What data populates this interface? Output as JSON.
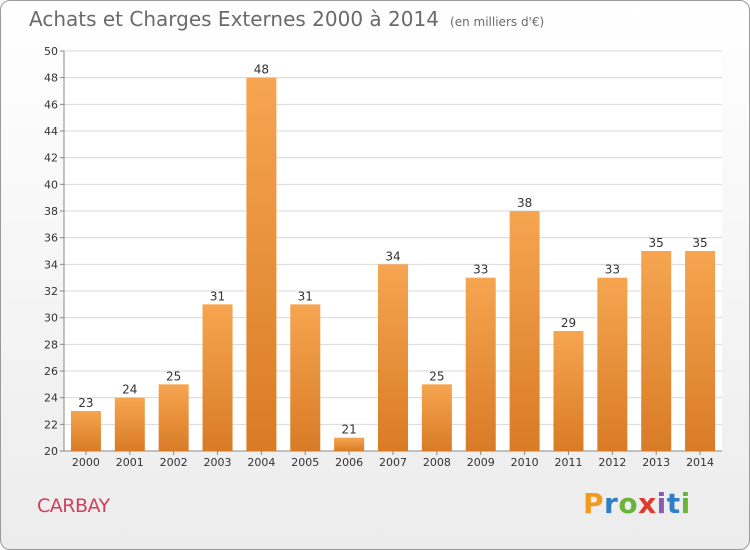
{
  "header": {
    "title": "Achats et Charges Externes 2000 à 2014",
    "unit": "(en milliers d'€)"
  },
  "footer": {
    "commune": "CARBAY",
    "logo": "Proxiti"
  },
  "colors": {
    "bar_light": "#f6a550",
    "bar_dark": "#d97b26",
    "grid": "#d8d8d8",
    "commune_text": "#d0405a",
    "logo_letters": [
      "#f39a1e",
      "#2f7fc6",
      "#6bb43a",
      "#e03a2f",
      "#8a5bb5",
      "#2f7fc6",
      "#6bb43a"
    ]
  },
  "chart_data": {
    "type": "bar",
    "title": "Achats et Charges Externes 2000 à 2014",
    "subtitle": "(en milliers d'€)",
    "xlabel": "",
    "ylabel": "",
    "categories": [
      "2000",
      "2001",
      "2002",
      "2003",
      "2004",
      "2005",
      "2006",
      "2007",
      "2008",
      "2009",
      "2010",
      "2011",
      "2012",
      "2013",
      "2014"
    ],
    "values": [
      23,
      24,
      25,
      31,
      48,
      31,
      21,
      34,
      25,
      33,
      38,
      29,
      33,
      35,
      35
    ],
    "ylim": [
      20,
      50
    ],
    "yticks": [
      20,
      22,
      24,
      26,
      28,
      30,
      32,
      34,
      36,
      38,
      40,
      42,
      44,
      46,
      48,
      50
    ],
    "grid": true,
    "legend": "none"
  }
}
